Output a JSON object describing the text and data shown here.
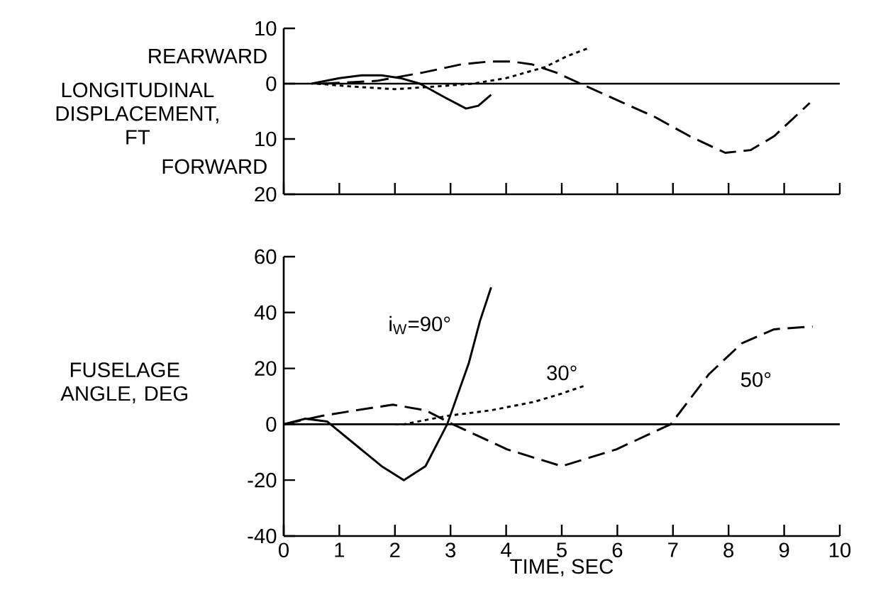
{
  "chart_data": [
    {
      "type": "line",
      "ylabel": "LONGITUDINAL DISPLACEMENT, FT",
      "xlim": [
        0,
        10
      ],
      "xticks": [
        0,
        1,
        2,
        3,
        4,
        5,
        6,
        7,
        8,
        9,
        10
      ],
      "ylim": [
        -20,
        10
      ],
      "yticks": [
        10,
        0,
        {
          "value": -10,
          "label": "10"
        },
        {
          "value": -20,
          "label": "20"
        }
      ],
      "tick_labels": "y",
      "annotations": [
        "REARWARD",
        "FORWARD"
      ],
      "ref_lines": [
        {
          "axis": "y",
          "value": 0
        }
      ],
      "series": [
        {
          "color": "#000000",
          "line_style": "solid",
          "x": [
            0.5,
            1.0,
            1.4,
            1.76,
            2.1,
            2.45,
            2.9,
            3.28,
            3.5,
            3.73
          ],
          "values": [
            0,
            1,
            1.5,
            1.5,
            1,
            0,
            -2.5,
            -4.5,
            -4,
            -2
          ]
        },
        {
          "color": "#000000",
          "line_style": "dotted",
          "x": [
            0.6,
            1.2,
            2.0,
            2.75,
            3.4,
            4.0,
            4.7,
            5.1,
            5.5
          ],
          "values": [
            0,
            -0.5,
            -1,
            -0.5,
            0,
            1,
            3,
            5,
            6.5
          ]
        },
        {
          "color": "#000000",
          "line_style": "dashed",
          "x": [
            0.7,
            1.67,
            2.5,
            3.2,
            3.7,
            4.1,
            4.46,
            4.9,
            5.34,
            6.0,
            6.67,
            7.3,
            7.94,
            8.4,
            8.82,
            9.46
          ],
          "values": [
            0,
            0.5,
            2,
            3.5,
            4,
            4,
            3.5,
            2,
            0,
            -3,
            -6,
            -9.5,
            -12.5,
            -12,
            -9.5,
            -3.5
          ]
        }
      ]
    },
    {
      "type": "line",
      "ylabel": "FUSELAGE ANGLE, DEG",
      "xlabel": "TIME, SEC",
      "xlim": [
        0,
        10
      ],
      "xticks": [
        0,
        1,
        2,
        3,
        4,
        5,
        6,
        7,
        8,
        9,
        10
      ],
      "ylim": [
        -40,
        60
      ],
      "yticks": [
        -40,
        -20,
        0,
        20,
        40,
        60
      ],
      "ref_lines": [
        {
          "axis": "y",
          "value": 0
        }
      ],
      "annotations": [
        "i$_{W}$=90°",
        "30°",
        "50°"
      ],
      "series": [
        {
          "color": "#000000",
          "line_style": "solid",
          "x": [
            0,
            0.39,
            0.78,
            1.27,
            1.76,
            2.16,
            2.55,
            2.94,
            3.33,
            3.53,
            3.73
          ],
          "values": [
            0,
            2,
            1,
            -7,
            -15,
            -20,
            -15,
            0,
            22,
            37,
            49
          ]
        },
        {
          "color": "#000000",
          "line_style": "dotted",
          "x": [
            2.0,
            2.16,
            2.94,
            3.73,
            4.5,
            5.0,
            5.44
          ],
          "values": [
            0,
            0,
            3,
            5,
            8,
            11,
            14
          ]
        },
        {
          "color": "#000000",
          "line_style": "dashed",
          "x": [
            0,
            0.69,
            1.3,
            1.96,
            2.55,
            3.04,
            4.02,
            5.0,
            5.98,
            6.96,
            7.65,
            8.24,
            8.82,
            9.51
          ],
          "values": [
            0,
            3,
            5,
            7,
            5,
            0,
            -9,
            -15,
            -9,
            0,
            18,
            29,
            34,
            35
          ]
        }
      ]
    }
  ]
}
